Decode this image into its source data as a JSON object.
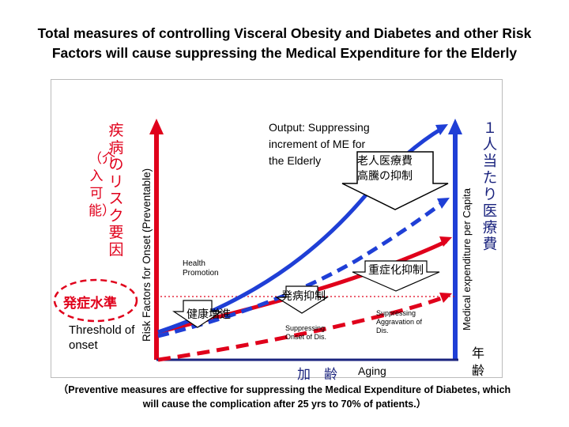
{
  "title_line1": "Total measures of controlling Visceral Obesity and Diabetes and other Risk",
  "title_line2": "Factors will cause suppressing the Medical Expenditure for the Elderly",
  "left_axis": {
    "jp_col1": "疾病のリスク要因",
    "jp_col2": "（介入可能）",
    "label": "Risk Factors for Onset (Preventable)"
  },
  "right_axis": {
    "label": "Medical expenditure per Capita",
    "jp_vertical": "１人当たり医療費"
  },
  "onset_jp": "発症水準",
  "threshold_line1": "Threshold of",
  "threshold_line2": "onset",
  "output_line1": "Output: Suppressing",
  "output_line2": "increment of ME for",
  "output_line3": "the Elderly",
  "output_jp_line1": "老人医療費",
  "output_jp_line2": "高騰の抑制",
  "health_promotion_line1": "Health",
  "health_promotion_line2": "Promotion",
  "box_health": "健康増進",
  "box_onset": "発病抑制",
  "box_severity": "重症化抑制",
  "supp_onset_line1": "Suppressing",
  "supp_onset_line2": "Onset of Dis.",
  "supp_aggr_line1": "Suppressing",
  "supp_aggr_line2": "Aggravation of",
  "supp_aggr_line3": "Dis.",
  "xaxis_jp": "加　齢",
  "xaxis_en": "Aging",
  "xaxis_jp_right": "年齢",
  "caption_line1": "（Preventive measures are effective for suppressing the Medical Expenditure of Diabetes, which",
  "caption_line2": "will cause the complication after 25 yrs to 70% of patients.）",
  "colors": {
    "red": "#e0001b",
    "blue": "#1f3fd6",
    "navy": "#1a237e",
    "onset_circle": "#e0001b"
  }
}
